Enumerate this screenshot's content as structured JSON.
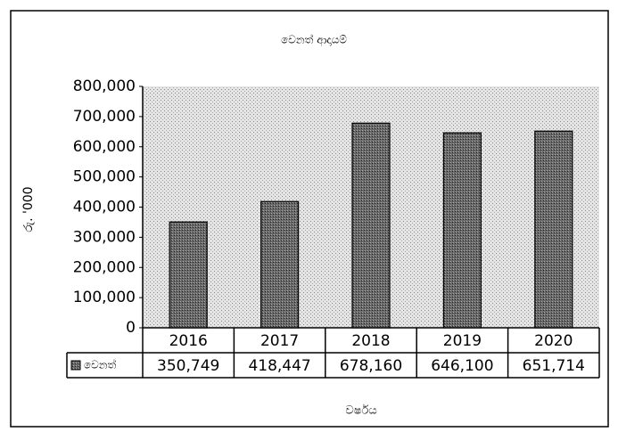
{
  "chart_data": {
    "type": "bar",
    "title": "වෙනත් ආදායම්",
    "ylabel": "රු. '000",
    "xlabel": "වර්ෂය",
    "categories": [
      "2016",
      "2017",
      "2018",
      "2019",
      "2020"
    ],
    "series": [
      {
        "name": "වෙනත්",
        "color": "#5a5a5a",
        "values": [
          350749,
          418447,
          678160,
          646100,
          651714
        ],
        "value_labels": [
          "350,749",
          "418,447",
          "678,160",
          "646,100",
          "651,714"
        ]
      }
    ],
    "ylim": [
      0,
      800000
    ],
    "yticks": [
      0,
      {
        "value": 100000,
        "label": "100,000"
      },
      {
        "value": 200000,
        "label": "200,000"
      },
      {
        "value": 300000,
        "label": "300,000"
      },
      {
        "value": 400000,
        "label": "400,000"
      },
      {
        "value": 500000,
        "label": "500,000"
      },
      {
        "value": 600000,
        "label": "600,000"
      },
      {
        "value": 700000,
        "label": "700,000"
      },
      {
        "value": 800000,
        "label": "800,000"
      }
    ],
    "grid": false
  }
}
